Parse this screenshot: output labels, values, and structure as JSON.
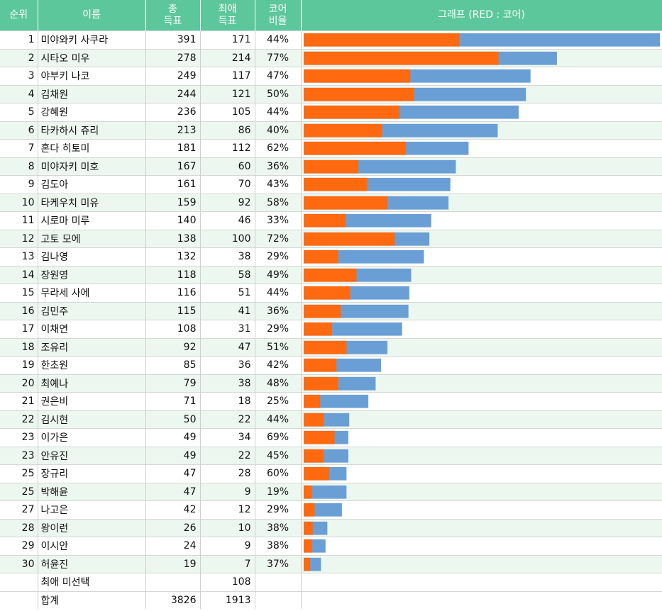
{
  "header": {
    "rank": "순위",
    "name": "이름",
    "total_line1": "총",
    "total_line2": "득표",
    "core_line1": "최애",
    "core_line2": "득표",
    "ratio_line1": "코어",
    "ratio_line2": "비율",
    "graph": "그래프 (RED : 코어)"
  },
  "colors": {
    "core": "#ff6a10",
    "total": "#6a9fd6",
    "header": "#5cc79a",
    "alt_row": "#ecf7ef"
  },
  "rows": [
    {
      "rank": "1",
      "name": "미야와키 사쿠라",
      "total": 391,
      "core": 171,
      "ratio": "44%"
    },
    {
      "rank": "2",
      "name": "시타오 미우",
      "total": 278,
      "core": 214,
      "ratio": "77%"
    },
    {
      "rank": "3",
      "name": "야부키 나코",
      "total": 249,
      "core": 117,
      "ratio": "47%"
    },
    {
      "rank": "4",
      "name": "김채원",
      "total": 244,
      "core": 121,
      "ratio": "50%"
    },
    {
      "rank": "5",
      "name": "강혜원",
      "total": 236,
      "core": 105,
      "ratio": "44%"
    },
    {
      "rank": "6",
      "name": "타카하시 쥬리",
      "total": 213,
      "core": 86,
      "ratio": "40%"
    },
    {
      "rank": "7",
      "name": "혼다 히토미",
      "total": 181,
      "core": 112,
      "ratio": "62%"
    },
    {
      "rank": "8",
      "name": "미야자키 미호",
      "total": 167,
      "core": 60,
      "ratio": "36%"
    },
    {
      "rank": "9",
      "name": "김도아",
      "total": 161,
      "core": 70,
      "ratio": "43%"
    },
    {
      "rank": "10",
      "name": "타케우치 미유",
      "total": 159,
      "core": 92,
      "ratio": "58%"
    },
    {
      "rank": "11",
      "name": "시로마 미루",
      "total": 140,
      "core": 46,
      "ratio": "33%"
    },
    {
      "rank": "12",
      "name": "고토 모에",
      "total": 138,
      "core": 100,
      "ratio": "72%"
    },
    {
      "rank": "13",
      "name": "김나영",
      "total": 132,
      "core": 38,
      "ratio": "29%"
    },
    {
      "rank": "14",
      "name": "장원영",
      "total": 118,
      "core": 58,
      "ratio": "49%"
    },
    {
      "rank": "15",
      "name": "무라세 사에",
      "total": 116,
      "core": 51,
      "ratio": "44%"
    },
    {
      "rank": "16",
      "name": "김민주",
      "total": 115,
      "core": 41,
      "ratio": "36%"
    },
    {
      "rank": "17",
      "name": "이채연",
      "total": 108,
      "core": 31,
      "ratio": "29%"
    },
    {
      "rank": "18",
      "name": "조유리",
      "total": 92,
      "core": 47,
      "ratio": "51%"
    },
    {
      "rank": "19",
      "name": "한초원",
      "total": 85,
      "core": 36,
      "ratio": "42%"
    },
    {
      "rank": "20",
      "name": "최예나",
      "total": 79,
      "core": 38,
      "ratio": "48%"
    },
    {
      "rank": "21",
      "name": "권은비",
      "total": 71,
      "core": 18,
      "ratio": "25%"
    },
    {
      "rank": "22",
      "name": "김시현",
      "total": 50,
      "core": 22,
      "ratio": "44%"
    },
    {
      "rank": "23",
      "name": "이가은",
      "total": 49,
      "core": 34,
      "ratio": "69%"
    },
    {
      "rank": "23",
      "name": "안유진",
      "total": 49,
      "core": 22,
      "ratio": "45%"
    },
    {
      "rank": "25",
      "name": "장규리",
      "total": 47,
      "core": 28,
      "ratio": "60%"
    },
    {
      "rank": "25",
      "name": "박해윤",
      "total": 47,
      "core": 9,
      "ratio": "19%"
    },
    {
      "rank": "27",
      "name": "나고은",
      "total": 42,
      "core": 12,
      "ratio": "29%"
    },
    {
      "rank": "28",
      "name": "왕이런",
      "total": 26,
      "core": 10,
      "ratio": "38%"
    },
    {
      "rank": "29",
      "name": "이시안",
      "total": 24,
      "core": 9,
      "ratio": "38%"
    },
    {
      "rank": "30",
      "name": "허윤진",
      "total": 19,
      "core": 7,
      "ratio": "37%"
    }
  ],
  "footer": {
    "unselected_label": "최애 미선택",
    "unselected_core": "108",
    "sum_label": "합계",
    "sum_total": "3826",
    "sum_core": "1913"
  },
  "chart_data": {
    "type": "bar",
    "orientation": "horizontal",
    "stacked": "overlay",
    "title": "그래프 (RED : 코어)",
    "xlim": [
      0,
      391
    ],
    "categories": [
      "미야와키 사쿠라",
      "시타오 미우",
      "야부키 나코",
      "김채원",
      "강혜원",
      "타카하시 쥬리",
      "혼다 히토미",
      "미야자키 미호",
      "김도아",
      "타케우치 미유",
      "시로마 미루",
      "고토 모에",
      "김나영",
      "장원영",
      "무라세 사에",
      "김민주",
      "이채연",
      "조유리",
      "한초원",
      "최예나",
      "권은비",
      "김시현",
      "이가은",
      "안유진",
      "장규리",
      "박해윤",
      "나고은",
      "왕이런",
      "이시안",
      "허윤진"
    ],
    "series": [
      {
        "name": "총 득표",
        "color": "#6a9fd6",
        "values": [
          391,
          278,
          249,
          244,
          236,
          213,
          181,
          167,
          161,
          159,
          140,
          138,
          132,
          118,
          116,
          115,
          108,
          92,
          85,
          79,
          71,
          50,
          49,
          49,
          47,
          47,
          42,
          26,
          24,
          19
        ]
      },
      {
        "name": "코어 (최애 득표)",
        "color": "#ff6a10",
        "values": [
          171,
          214,
          117,
          121,
          105,
          86,
          112,
          60,
          70,
          92,
          46,
          100,
          38,
          58,
          51,
          41,
          31,
          47,
          36,
          38,
          18,
          22,
          34,
          22,
          28,
          9,
          12,
          10,
          9,
          7
        ]
      }
    ]
  }
}
